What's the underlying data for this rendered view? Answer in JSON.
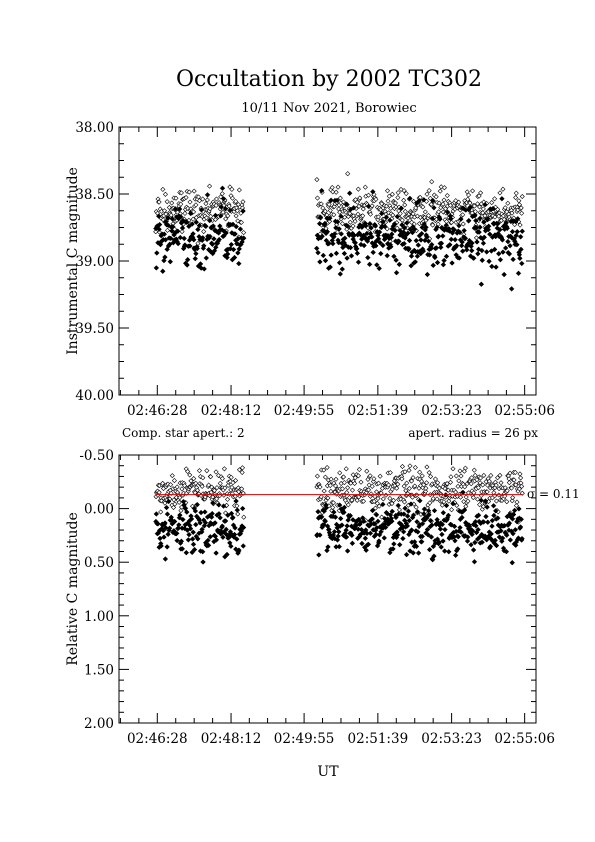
{
  "title": "Occultation by 2002 TC302",
  "subtitle": "10/11 Nov 2021, Borowiec",
  "xlabel": "UT",
  "upper_note_left": "Comp. star apert.: 2",
  "upper_note_right": "apert. radius = 26 px",
  "sigma_label": "σ = 0.11",
  "chart_data": [
    {
      "type": "scatter",
      "panel": "upper",
      "ylabel": "Instrumental C magnitude",
      "y_inverted": true,
      "ylim": [
        40.0,
        38.0
      ],
      "yticks": [
        "38.00",
        "38.50",
        "39.00",
        "39.50",
        "40.00"
      ],
      "xticks": [
        "02:46:28",
        "02:48:12",
        "02:49:55",
        "02:51:39",
        "02:53:23",
        "02:55:06"
      ],
      "xlim_seconds_after_0246": [
        -26,
        562
      ],
      "gap": [
        "02:48:30",
        "02:50:13"
      ],
      "series": [
        {
          "marker": "open-diamond",
          "mean": 38.62,
          "sd": 0.08
        },
        {
          "marker": "filled-diamond",
          "mean": 38.82,
          "sd": 0.12
        }
      ]
    },
    {
      "type": "scatter",
      "panel": "lower",
      "ylabel": "Relative C magnitude",
      "y_inverted": true,
      "ylim": [
        2.0,
        -0.5
      ],
      "yticks": [
        "-0.50",
        "0.00",
        "0.50",
        "1.00",
        "1.50",
        "2.00"
      ],
      "xticks": [
        "02:46:28",
        "02:48:12",
        "02:49:55",
        "02:51:39",
        "02:53:23",
        "02:55:06"
      ],
      "xlim_seconds_after_0246": [
        -26,
        562
      ],
      "gap": [
        "02:48:30",
        "02:50:13"
      ],
      "reference_line": {
        "y": -0.13,
        "color": "#d40000"
      },
      "series": [
        {
          "marker": "open-diamond",
          "mean": -0.17,
          "sd": 0.1
        },
        {
          "marker": "filled-diamond",
          "mean": 0.2,
          "sd": 0.12
        }
      ]
    }
  ]
}
